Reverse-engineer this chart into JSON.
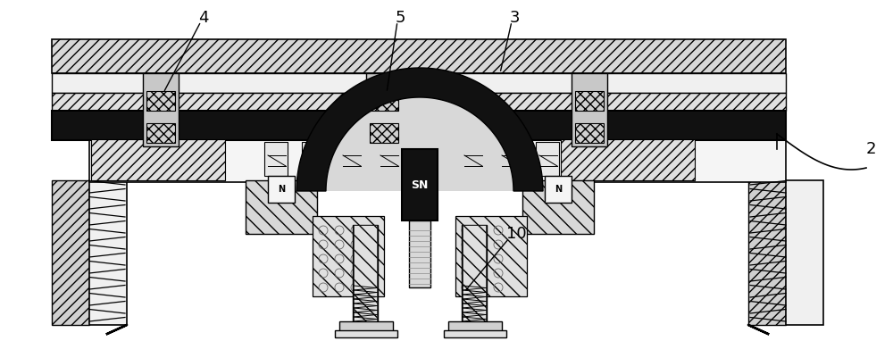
{
  "fig_width": 10.0,
  "fig_height": 3.82,
  "dpi": 100,
  "bg_color": "#ffffff",
  "line_color": "#000000",
  "fill_light": "#e8e8e8",
  "fill_dark": "#111111",
  "fill_mid": "#cccccc",
  "fill_hatch": "#d8d8d8",
  "label_fontsize": 13,
  "labels": [
    "2",
    "3",
    "4",
    "5",
    "10"
  ],
  "SN_text": "SN",
  "N_text": "N"
}
